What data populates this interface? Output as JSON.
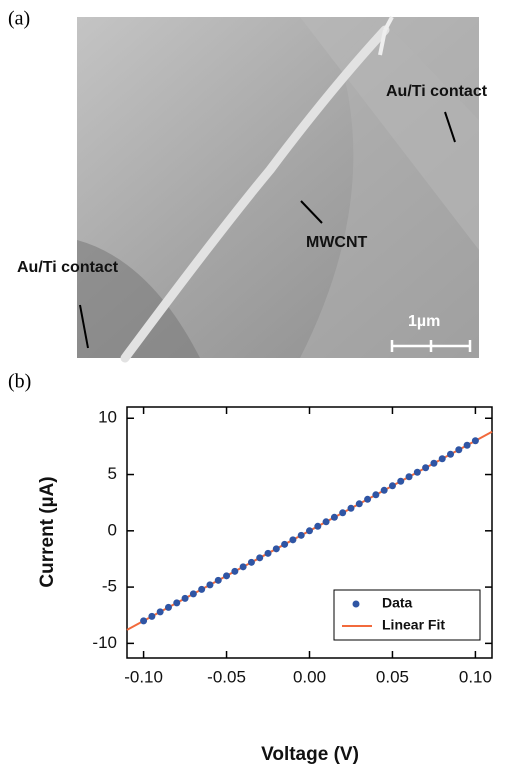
{
  "panel_a": {
    "label": "(a)",
    "contact_top": "Au/Ti contact",
    "contact_bottom": "Au/Ti contact",
    "tube": "MWCNT",
    "scale_bar": "1µm"
  },
  "chart_data": {
    "type": "scatter",
    "panel_label": "(b)",
    "x_label": "Voltage (V)",
    "y_label": "Current (µA)",
    "xlim": [
      -0.11,
      0.11
    ],
    "ylim": [
      -11.3,
      11
    ],
    "xticks": [
      {
        "value": -0.1,
        "label": "-0.10"
      },
      {
        "value": -0.05,
        "label": "-0.05"
      },
      {
        "value": 0,
        "label": "0.00"
      },
      {
        "value": 0.05,
        "label": "0.05"
      },
      {
        "value": 0.1,
        "label": "0.10"
      }
    ],
    "yticks": [
      -10,
      -5,
      0,
      5,
      10
    ],
    "legend": "lower right",
    "series": [
      {
        "name": "Data",
        "color": "#2f55a4",
        "kind": "markers",
        "x": [
          -0.1,
          -0.095,
          -0.09,
          -0.085,
          -0.08,
          -0.075,
          -0.07,
          -0.065,
          -0.06,
          -0.055,
          -0.05,
          -0.045,
          -0.04,
          -0.035,
          -0.03,
          -0.025,
          -0.02,
          -0.015,
          -0.01,
          -0.005,
          0,
          0.005,
          0.01,
          0.015,
          0.02,
          0.025,
          0.03,
          0.035,
          0.04,
          0.045,
          0.05,
          0.055,
          0.06,
          0.065,
          0.07,
          0.075,
          0.08,
          0.085,
          0.09,
          0.095,
          0.1
        ],
        "values": [
          -8,
          -7.6,
          -7.2,
          -6.8,
          -6.4,
          -6,
          -5.6,
          -5.2,
          -4.8,
          -4.4,
          -4,
          -3.6,
          -3.2,
          -2.8,
          -2.4,
          -2,
          -1.6,
          -1.2,
          -0.8,
          -0.4,
          0,
          0.4,
          0.8,
          1.2,
          1.6,
          2,
          2.4,
          2.8,
          3.2,
          3.6,
          4,
          4.4,
          4.8,
          5.2,
          5.6,
          6,
          6.4,
          6.8,
          7.2,
          7.6,
          8
        ]
      },
      {
        "name": "Linear Fit",
        "color": "#f26a3c",
        "kind": "line",
        "x": [
          -0.11,
          0.11
        ],
        "values": [
          -8.8,
          8.8
        ]
      }
    ]
  }
}
